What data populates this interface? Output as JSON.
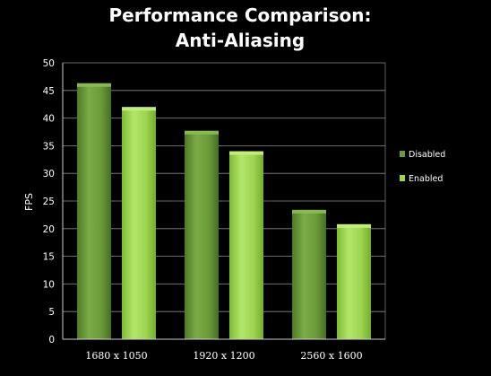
{
  "chart_data": {
    "type": "bar",
    "title_lines": [
      "Performance Comparison:",
      "Anti-Aliasing"
    ],
    "xlabel": "",
    "ylabel": "FPS",
    "categories": [
      "1680 x 1050",
      "1920 x 1200",
      "2560 x 1600"
    ],
    "series": [
      {
        "name": "Disabled",
        "values": [
          46.3,
          37.7,
          23.4
        ]
      },
      {
        "name": "Enabled",
        "values": [
          42.0,
          34.0,
          20.8
        ]
      }
    ],
    "ylim": [
      0,
      50
    ],
    "yticks": [
      0,
      5,
      10,
      15,
      20,
      25,
      30,
      35,
      40,
      45,
      50
    ],
    "grid": true,
    "legend_position": "right"
  },
  "colors": {
    "background": "#000000",
    "disabled_bar": "#6a9a3b",
    "enabled_bar": "#9bd54a",
    "grid": "#8a8a8a"
  }
}
